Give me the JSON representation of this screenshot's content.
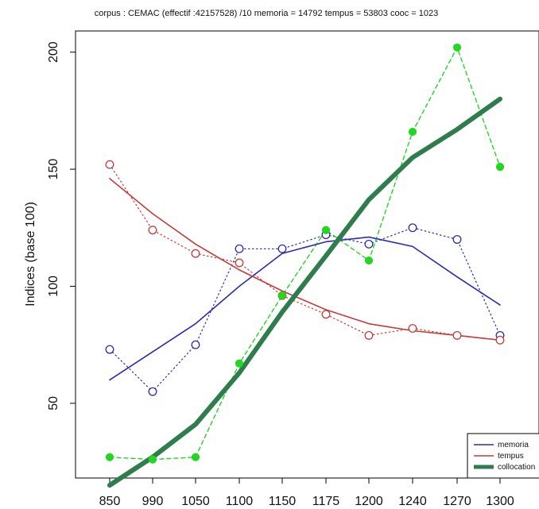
{
  "chart_data": {
    "type": "line",
    "title": "corpus : CEMAC (effectif :42157528) /10    memoria = 14792  tempus = 53803  cooc = 1023",
    "ylabel": "Indices (base 100)",
    "xlabel": "",
    "categories": [
      "850",
      "990",
      "1050",
      "1100",
      "1150",
      "1175",
      "1200",
      "1240",
      "1270",
      "1300"
    ],
    "y_ticks": [
      50,
      100,
      150,
      200
    ],
    "ylim": [
      19,
      211
    ],
    "legend_position": "bottom-right",
    "grid": false,
    "series": [
      {
        "name": "memoria",
        "color": "#2b2bb3",
        "raw_values": [
          73,
          55,
          75,
          116,
          116,
          122,
          118,
          125,
          120,
          79
        ],
        "smooth_values": [
          60,
          72,
          84,
          100,
          114,
          119,
          121,
          117,
          104,
          92
        ]
      },
      {
        "name": "tempus",
        "color": "#c73b3b",
        "raw_values": [
          152,
          124,
          114,
          110,
          96,
          88,
          79,
          82,
          79,
          77
        ],
        "smooth_values": [
          146,
          131,
          118,
          107,
          98,
          90,
          84,
          81,
          79,
          77
        ]
      },
      {
        "name": "collocation",
        "color": "#2f7d4d",
        "accent_color": "#22d622",
        "raw_values": [
          27,
          26,
          27,
          67,
          96,
          124,
          111,
          166,
          202,
          151
        ],
        "smooth_values": [
          15,
          27,
          41,
          63,
          89,
          113,
          137,
          155,
          167,
          180
        ]
      }
    ]
  }
}
